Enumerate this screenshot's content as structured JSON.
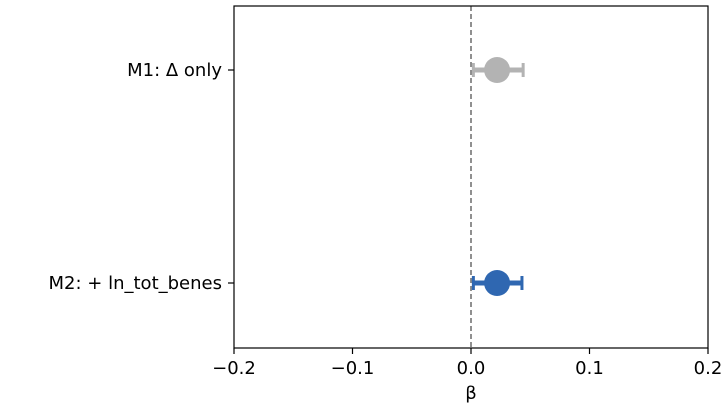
{
  "chart_data": {
    "type": "scatter",
    "subtype": "coefficient-plot-with-error-bars",
    "title": "",
    "xlabel": "β",
    "ylabel": "",
    "xlim": [
      -0.2,
      0.2
    ],
    "x_ticks": [
      -0.2,
      -0.1,
      0.0,
      0.1,
      0.2
    ],
    "x_tick_labels": [
      "−0.2",
      "−0.1",
      "0.0",
      "0.1",
      "0.2"
    ],
    "reference_line": {
      "x": 0.0,
      "style": "dashed",
      "color": "#555555"
    },
    "grid": false,
    "legend": "none",
    "series": [
      {
        "label": "M1: Δ only",
        "estimate": 0.022,
        "ci": [
          0.002,
          0.044
        ],
        "color": "#b3b3b3"
      },
      {
        "label": "M2: + ln_tot_benes",
        "estimate": 0.022,
        "ci": [
          0.002,
          0.043
        ],
        "color": "#2f67b1"
      }
    ]
  }
}
